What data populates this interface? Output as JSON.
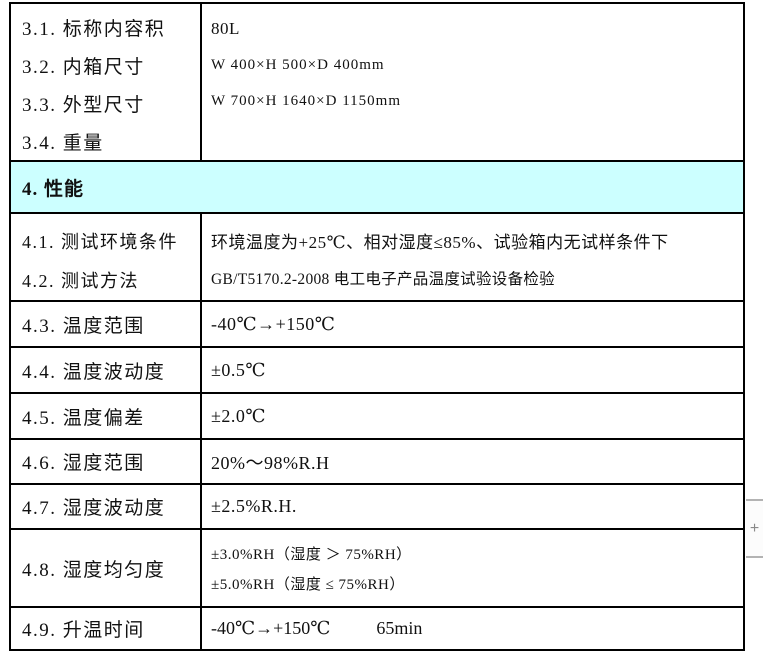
{
  "colors": {
    "section_header_bg": "#ccffff",
    "table_border": "#000000",
    "text": "#111111",
    "widget_gray": "#b3b3b3"
  },
  "spec_table": {
    "section3": {
      "labels": [
        "3.1. 标称内容积",
        "3.2. 内箱尺寸",
        "3.3. 外型尺寸",
        "3.4. 重量"
      ],
      "values": [
        "80L",
        "W 400×H 500×D 400mm",
        "W 700×H 1640×D 1150mm"
      ]
    },
    "section4": {
      "header": "4. 性能",
      "test_conditions": {
        "labels": [
          "4.1. 测试环境条件",
          "4.2. 测试方法"
        ],
        "values": [
          "环境温度为+25℃、相对湿度≤85%、试验箱内无试样条件下",
          "GB/T5170.2-2008 电工电子产品温度试验设备检验"
        ]
      },
      "simple_rows": [
        {
          "label": "4.3. 温度范围",
          "value": "-40℃→+150℃"
        },
        {
          "label": "4.4. 温度波动度",
          "value": "±0.5℃"
        },
        {
          "label": "4.5. 温度偏差",
          "value": "±2.0℃"
        },
        {
          "label": "4.6. 湿度范围",
          "value": "20%～98%R.H"
        },
        {
          "label": "4.7. 湿度波动度",
          "value": "±2.5%R.H."
        }
      ],
      "humidity_uniformity": {
        "label": "4.8. 湿度均匀度",
        "values": [
          "±3.0%RH（湿度 ＞ 75%RH）",
          "±5.0%RH（湿度 ≤ 75%RH）"
        ]
      },
      "heatup_time": {
        "label": "4.9. 升温时间",
        "range": "-40℃→+150℃",
        "duration": "65min"
      }
    }
  },
  "side_widget": {
    "plus": "+"
  }
}
